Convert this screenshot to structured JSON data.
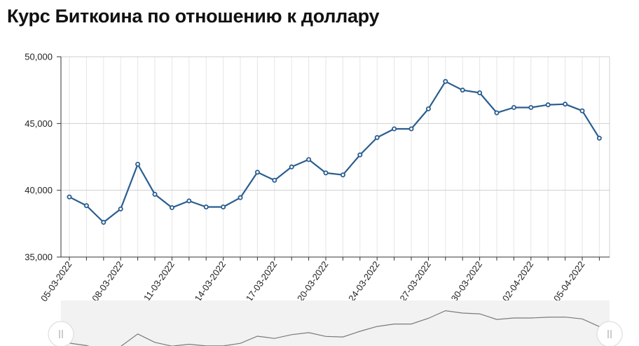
{
  "chart_data": {
    "type": "line",
    "title": "Курс Биткоина по отношению к доллару",
    "xlabel": "",
    "ylabel": "",
    "ylim": [
      35000,
      50000
    ],
    "yticks": [
      "35,000",
      "40,000",
      "45,000",
      "50,000"
    ],
    "ytick_values": [
      35000,
      40000,
      45000,
      50000
    ],
    "xtick_labels": [
      "05-03-2022",
      "08-03-2022",
      "11-03-2022",
      "14-03-2022",
      "17-03-2022",
      "20-03-2022",
      "24-03-2022",
      "27-03-2022",
      "30-03-2022",
      "02-04-2022",
      "05-04-2022"
    ],
    "xtick_indices": [
      0,
      3,
      6,
      9,
      12,
      15,
      18,
      21,
      24,
      27,
      30
    ],
    "grid": true,
    "series": [
      {
        "color": "#2a5d8f",
        "values": [
          39500,
          38850,
          37600,
          38600,
          41950,
          39700,
          38700,
          39200,
          38750,
          38750,
          39450,
          41350,
          40750,
          41750,
          42300,
          41300,
          41150,
          42650,
          43950,
          44600,
          44600,
          46100,
          48150,
          47500,
          47300,
          45800,
          46200,
          46200,
          46400,
          46450,
          45950,
          43900
        ]
      }
    ],
    "navigator": {
      "enabled": true
    }
  }
}
